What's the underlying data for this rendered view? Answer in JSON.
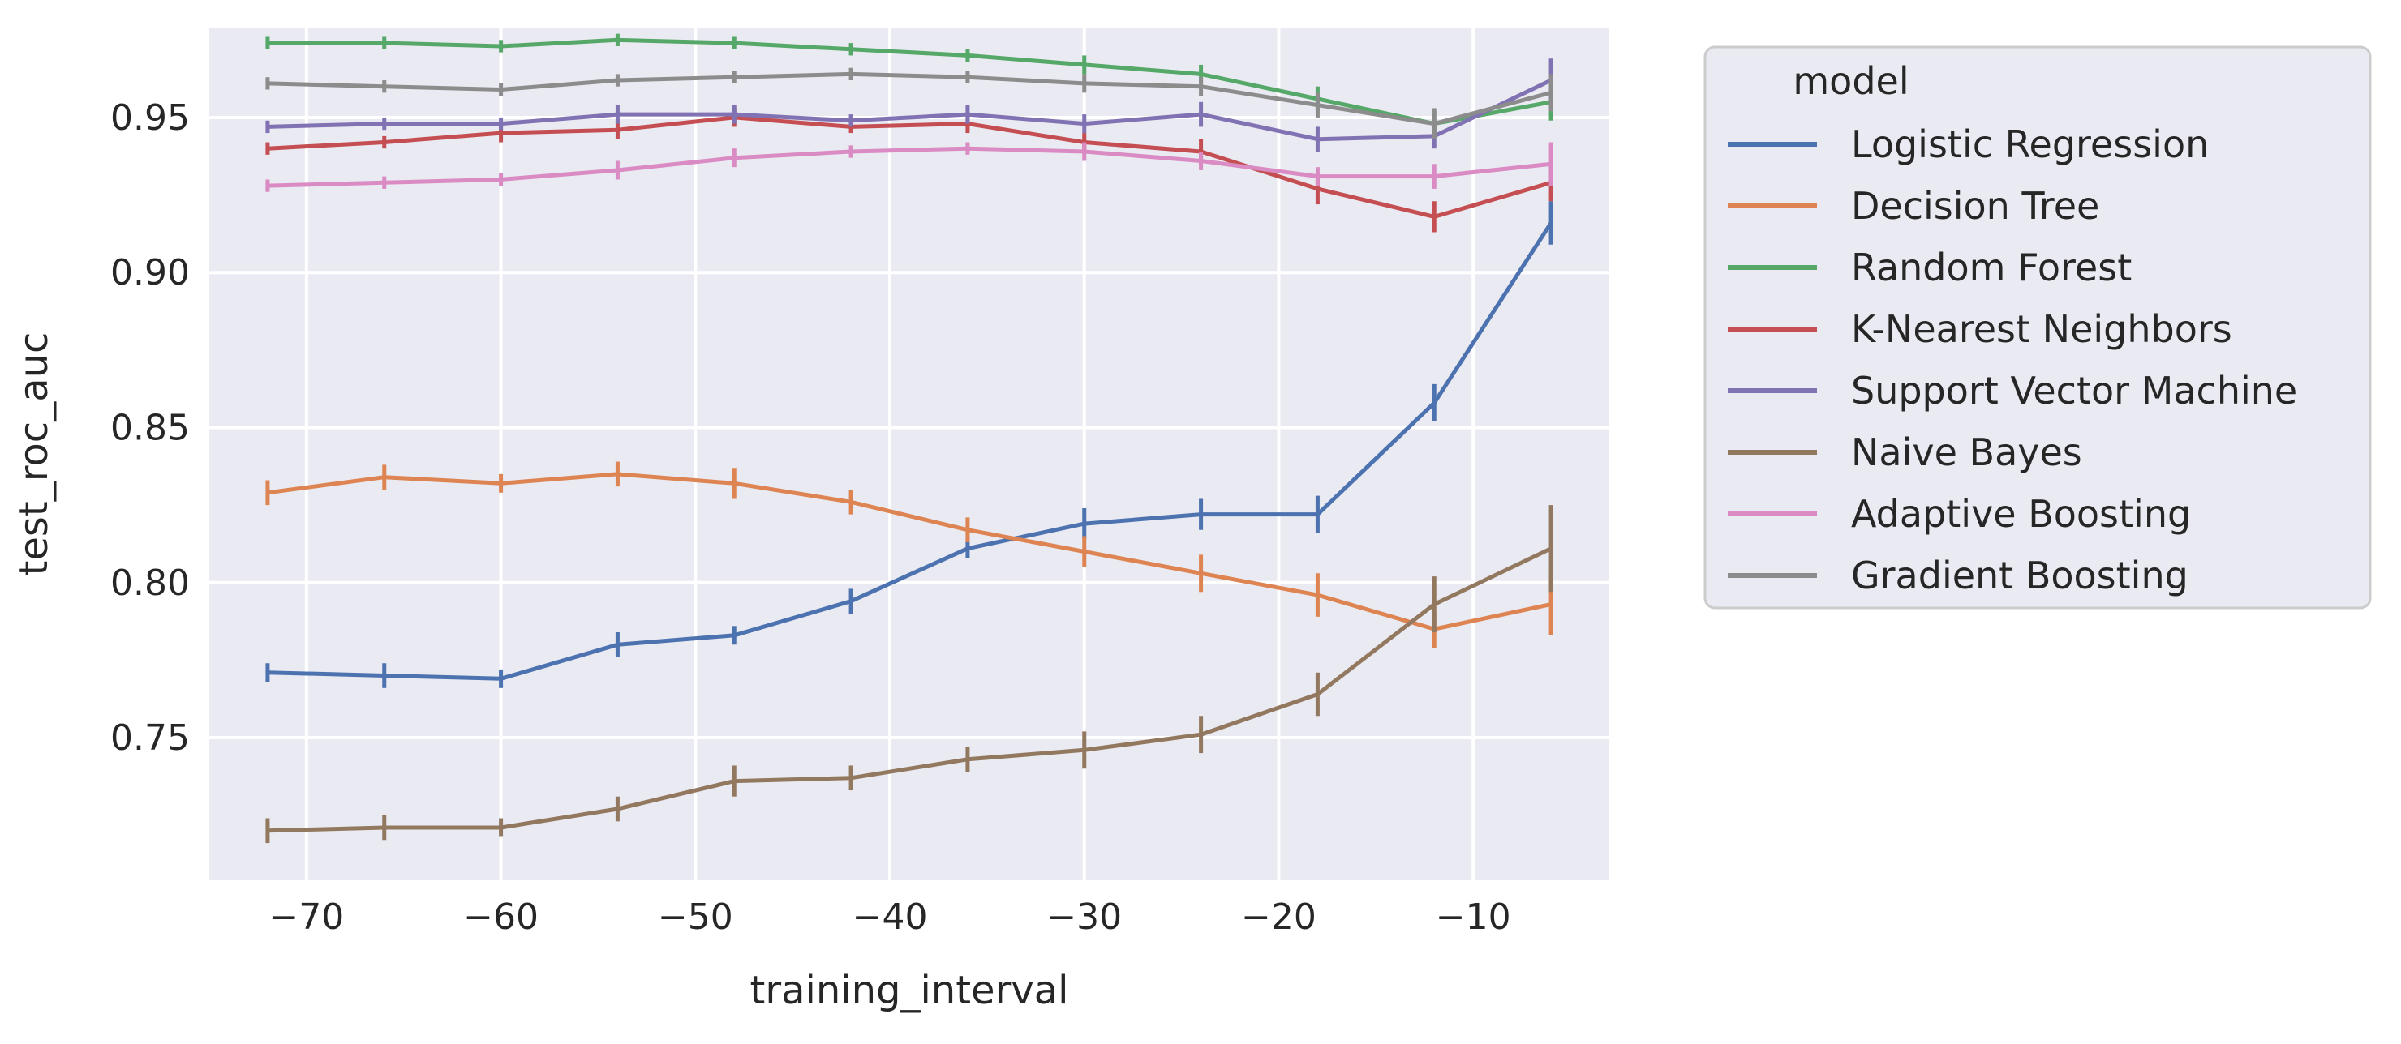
{
  "chart_data": {
    "type": "line",
    "title": "",
    "xlabel": "training_interval",
    "ylabel": "test_roc_auc",
    "xlim": [
      -75,
      -3
    ],
    "ylim": [
      0.704,
      0.979
    ],
    "xticks": [
      -70,
      -60,
      -50,
      -40,
      -30,
      -20,
      -10
    ],
    "xtick_labels": [
      "−70",
      "−60",
      "−50",
      "−40",
      "−30",
      "−20",
      "−10"
    ],
    "yticks": [
      0.75,
      0.8,
      0.85,
      0.9,
      0.95
    ],
    "ytick_labels": [
      "0.75",
      "0.80",
      "0.85",
      "0.90",
      "0.95"
    ],
    "grid": true,
    "legend_title": "model",
    "legend_position": "outside-right",
    "x": [
      -72,
      -66,
      -60,
      -54,
      -48,
      -42,
      -36,
      -30,
      -24,
      -18,
      -12,
      -6
    ],
    "series": [
      {
        "name": "Logistic Regression",
        "color": "#4c72b0",
        "values": [
          0.771,
          0.77,
          0.769,
          0.78,
          0.783,
          0.794,
          0.811,
          0.819,
          0.822,
          0.822,
          0.858,
          0.916
        ],
        "errors": [
          0.003,
          0.004,
          0.003,
          0.004,
          0.003,
          0.004,
          0.003,
          0.005,
          0.005,
          0.006,
          0.006,
          0.007
        ]
      },
      {
        "name": "Decision Tree",
        "color": "#dd8452",
        "values": [
          0.829,
          0.834,
          0.832,
          0.835,
          0.832,
          0.826,
          0.817,
          0.81,
          0.803,
          0.796,
          0.785,
          0.793
        ],
        "errors": [
          0.004,
          0.004,
          0.003,
          0.004,
          0.005,
          0.004,
          0.004,
          0.005,
          0.006,
          0.007,
          0.006,
          0.01
        ]
      },
      {
        "name": "Random Forest",
        "color": "#55a868",
        "values": [
          0.974,
          0.974,
          0.973,
          0.975,
          0.974,
          0.972,
          0.97,
          0.967,
          0.964,
          0.956,
          0.948,
          0.955
        ],
        "errors": [
          0.002,
          0.002,
          0.002,
          0.002,
          0.002,
          0.002,
          0.002,
          0.003,
          0.003,
          0.004,
          0.004,
          0.006
        ]
      },
      {
        "name": "K-Nearest Neighbors",
        "color": "#c44e52",
        "values": [
          0.94,
          0.942,
          0.945,
          0.946,
          0.95,
          0.947,
          0.948,
          0.942,
          0.939,
          0.927,
          0.918,
          0.929
        ],
        "errors": [
          0.002,
          0.002,
          0.003,
          0.003,
          0.003,
          0.002,
          0.003,
          0.003,
          0.004,
          0.005,
          0.005,
          0.006
        ]
      },
      {
        "name": "Support Vector Machine",
        "color": "#8172b3",
        "values": [
          0.947,
          0.948,
          0.948,
          0.951,
          0.951,
          0.949,
          0.951,
          0.948,
          0.951,
          0.943,
          0.944,
          0.962
        ],
        "errors": [
          0.002,
          0.002,
          0.002,
          0.003,
          0.003,
          0.002,
          0.003,
          0.003,
          0.004,
          0.004,
          0.004,
          0.007
        ]
      },
      {
        "name": "Naive Bayes",
        "color": "#937860",
        "values": [
          0.72,
          0.721,
          0.721,
          0.727,
          0.736,
          0.737,
          0.743,
          0.746,
          0.751,
          0.764,
          0.793,
          0.811
        ],
        "errors": [
          0.004,
          0.004,
          0.003,
          0.004,
          0.005,
          0.004,
          0.004,
          0.006,
          0.006,
          0.007,
          0.009,
          0.014
        ]
      },
      {
        "name": "Adaptive Boosting",
        "color": "#da8bc3",
        "values": [
          0.928,
          0.929,
          0.93,
          0.933,
          0.937,
          0.939,
          0.94,
          0.939,
          0.936,
          0.931,
          0.931,
          0.935
        ],
        "errors": [
          0.002,
          0.002,
          0.002,
          0.003,
          0.003,
          0.002,
          0.002,
          0.003,
          0.003,
          0.003,
          0.004,
          0.007
        ]
      },
      {
        "name": "Gradient Boosting",
        "color": "#8c8c8c",
        "values": [
          0.961,
          0.96,
          0.959,
          0.962,
          0.963,
          0.964,
          0.963,
          0.961,
          0.96,
          0.954,
          0.948,
          0.958
        ],
        "errors": [
          0.002,
          0.002,
          0.002,
          0.002,
          0.002,
          0.002,
          0.002,
          0.003,
          0.003,
          0.004,
          0.005,
          0.006
        ]
      }
    ]
  }
}
